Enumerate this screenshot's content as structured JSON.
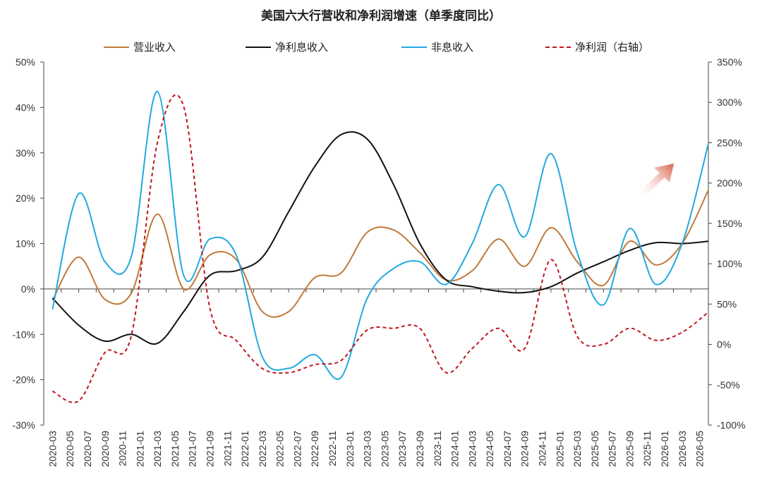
{
  "chart_data": {
    "type": "line",
    "title": "美国六大行营收和净利润增速（单季度同比）",
    "colors": {
      "营业收入": "#C07A3A",
      "净利息收入": "#111111",
      "非息收入": "#22A9E0",
      "净利润": "#C0161E",
      "arrow": "#E07A5A"
    },
    "x": [
      "2020-03",
      "2020-05",
      "2020-07",
      "2020-09",
      "2020-11",
      "2021-01",
      "2021-03",
      "2021-05",
      "2021-07",
      "2021-09",
      "2021-11",
      "2022-01",
      "2022-03",
      "2022-05",
      "2022-07",
      "2022-09",
      "2022-11",
      "2023-01",
      "2023-03",
      "2023-05",
      "2023-07",
      "2023-09",
      "2023-11",
      "2024-01",
      "2024-03",
      "2024-05",
      "2024-07",
      "2024-09",
      "2024-11",
      "2025-01",
      "2025-03",
      "2025-05",
      "2025-07",
      "2025-09",
      "2025-11",
      "2026-01",
      "2026-03",
      "2026-05"
    ],
    "left_axis": {
      "min": -30,
      "max": 50,
      "ticks": [
        "-30%",
        "-20%",
        "-10%",
        "0%",
        "10%",
        "20%",
        "30%",
        "40%",
        "50%"
      ]
    },
    "right_axis": {
      "min": -100,
      "max": 350,
      "ticks": [
        "-100%",
        "-50%",
        "0%",
        "50%",
        "100%",
        "150%",
        "200%",
        "250%",
        "300%",
        "350%"
      ]
    },
    "legend_position": "top",
    "series": [
      {
        "name": "营业收入",
        "axis": "left",
        "style": "solid",
        "points": [
          [
            "2020-03",
            -2.5
          ],
          [
            "2020-06",
            7
          ],
          [
            "2020-09",
            -2.3
          ],
          [
            "2020-12",
            -1
          ],
          [
            "2021-03",
            16.5
          ],
          [
            "2021-06",
            0
          ],
          [
            "2021-09",
            7.5
          ],
          [
            "2021-12",
            6.5
          ],
          [
            "2022-03",
            -5
          ],
          [
            "2022-06",
            -5
          ],
          [
            "2022-09",
            2.5
          ],
          [
            "2022-12",
            3.5
          ],
          [
            "2023-03",
            12.5
          ],
          [
            "2023-06",
            13
          ],
          [
            "2023-09",
            8
          ],
          [
            "2023-12",
            2
          ],
          [
            "2024-03",
            4
          ],
          [
            "2024-06",
            11
          ],
          [
            "2024-09",
            5
          ],
          [
            "2024-12",
            13.5
          ],
          [
            "2025-03",
            6
          ],
          [
            "2025-06",
            0.8
          ],
          [
            "2025-09",
            10.5
          ],
          [
            "2025-12",
            5.3
          ],
          [
            "2026-03",
            10
          ],
          [
            "2026-06",
            21.8
          ]
        ]
      },
      {
        "name": "净利息收入",
        "axis": "left",
        "style": "solid",
        "points": [
          [
            "2020-03",
            -2
          ],
          [
            "2020-06",
            -8
          ],
          [
            "2020-09",
            -11.5
          ],
          [
            "2020-12",
            -10
          ],
          [
            "2021-03",
            -12
          ],
          [
            "2021-06",
            -5
          ],
          [
            "2021-09",
            3
          ],
          [
            "2021-12",
            4
          ],
          [
            "2022-03",
            7
          ],
          [
            "2022-06",
            17
          ],
          [
            "2022-09",
            27
          ],
          [
            "2022-12",
            34
          ],
          [
            "2023-03",
            33
          ],
          [
            "2023-06",
            23
          ],
          [
            "2023-09",
            10
          ],
          [
            "2023-12",
            2
          ],
          [
            "2024-03",
            0.5
          ],
          [
            "2024-06",
            -0.5
          ],
          [
            "2024-09",
            -0.8
          ],
          [
            "2024-12",
            0.5
          ],
          [
            "2025-03",
            3.5
          ],
          [
            "2025-06",
            6
          ],
          [
            "2025-09",
            8.5
          ],
          [
            "2025-12",
            10.2
          ],
          [
            "2026-03",
            10
          ],
          [
            "2026-06",
            10.5
          ]
        ]
      },
      {
        "name": "非息收入",
        "axis": "left",
        "style": "solid",
        "points": [
          [
            "2020-03",
            -4.5
          ],
          [
            "2020-06",
            21
          ],
          [
            "2020-09",
            6
          ],
          [
            "2020-12",
            7
          ],
          [
            "2021-03",
            43.5
          ],
          [
            "2021-06",
            3
          ],
          [
            "2021-09",
            11
          ],
          [
            "2021-12",
            7.5
          ],
          [
            "2022-03",
            -15
          ],
          [
            "2022-06",
            -17.5
          ],
          [
            "2022-09",
            -14.5
          ],
          [
            "2022-12",
            -19.5
          ],
          [
            "2023-03",
            -2
          ],
          [
            "2023-06",
            4.5
          ],
          [
            "2023-09",
            6
          ],
          [
            "2023-12",
            1
          ],
          [
            "2024-03",
            10
          ],
          [
            "2024-06",
            23
          ],
          [
            "2024-09",
            11.5
          ],
          [
            "2024-12",
            29.8
          ],
          [
            "2025-03",
            8
          ],
          [
            "2025-06",
            -3.5
          ],
          [
            "2025-09",
            13.3
          ],
          [
            "2025-12",
            1
          ],
          [
            "2026-03",
            10
          ],
          [
            "2026-06",
            32
          ]
        ]
      },
      {
        "name": "净利润（右轴）",
        "axis": "right",
        "style": "dashed",
        "points": [
          [
            "2020-03",
            -58
          ],
          [
            "2020-06",
            -70
          ],
          [
            "2020-09",
            -10
          ],
          [
            "2020-12",
            10
          ],
          [
            "2021-03",
            250
          ],
          [
            "2021-06",
            295
          ],
          [
            "2021-09",
            45
          ],
          [
            "2021-12",
            5
          ],
          [
            "2022-03",
            -30
          ],
          [
            "2022-06",
            -35
          ],
          [
            "2022-09",
            -25
          ],
          [
            "2022-12",
            -20
          ],
          [
            "2023-03",
            18
          ],
          [
            "2023-06",
            20
          ],
          [
            "2023-09",
            20
          ],
          [
            "2023-12",
            -35
          ],
          [
            "2024-03",
            -5
          ],
          [
            "2024-06",
            20
          ],
          [
            "2024-09",
            -5
          ],
          [
            "2024-12",
            105
          ],
          [
            "2025-03",
            10
          ],
          [
            "2025-06",
            0
          ],
          [
            "2025-09",
            20
          ],
          [
            "2025-12",
            5
          ],
          [
            "2026-03",
            15
          ],
          [
            "2026-06",
            40
          ]
        ]
      }
    ]
  }
}
